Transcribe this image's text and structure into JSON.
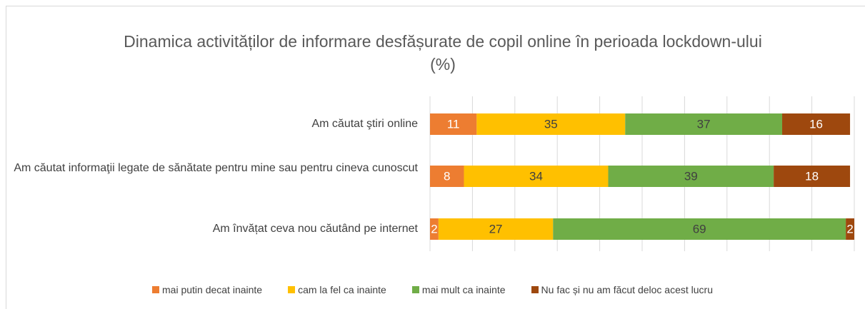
{
  "chart_data": {
    "type": "stacked-bar-horizontal",
    "title": "Dinamica activităților de informare desfășurate de copil online în perioada lockdown-ului (%)",
    "categories": [
      "Am căutat ştiri online",
      "Am căutat informaţii legate de sănătate pentru mine sau pentru cineva cunoscut",
      "Am învățat ceva nou căutând pe internet"
    ],
    "series": [
      {
        "name": "mai putin decat inainte",
        "color": "#ed7d31",
        "label_color": "#ffffff",
        "values": [
          11,
          8,
          2
        ]
      },
      {
        "name": "cam la fel ca inainte",
        "color": "#ffc000",
        "label_color": "#404040",
        "values": [
          35,
          34,
          27
        ]
      },
      {
        "name": "mai mult ca inainte",
        "color": "#70ad47",
        "label_color": "#404040",
        "values": [
          37,
          39,
          69
        ]
      },
      {
        "name": "Nu fac și nu am făcut deloc acest lucru",
        "color": "#9e480e",
        "label_color": "#ffffff",
        "values": [
          16,
          18,
          2
        ]
      }
    ],
    "xlim": [
      0,
      100
    ],
    "xticks": [
      0,
      10,
      20,
      30,
      40,
      50,
      60,
      70,
      80,
      90,
      100
    ],
    "grid": true,
    "legend": "bottom"
  }
}
